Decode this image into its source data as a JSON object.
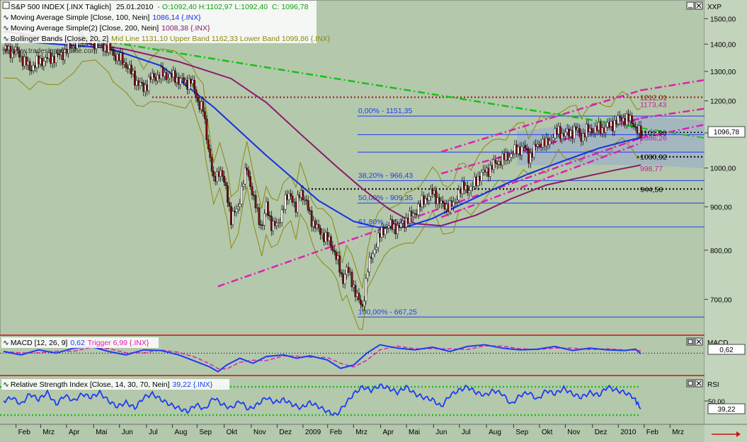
{
  "chart_data": {
    "type": "line",
    "main": {
      "legend": [
        {
          "label": "S&P 500 INDEX [.INX  Täglich]",
          "date": "25.01.2010",
          "ohlc": "- O:1092,40 H:1102,97 L:1092,40",
          "close": "C: 1096,78"
        },
        {
          "label": "Moving Average Simple [Close, 100, Nein]",
          "value": "1086,14 {.INX}"
        },
        {
          "label": "Moving Average Simple(2) [Close, 200, Nein]",
          "value": "1008,38 {.INX}"
        },
        {
          "label": "Bollinger Bands [Close, 20, 2]",
          "value": "Mid Line 1131,10 Upper Band 1162,33 Lower Band 1099,86 {.INX}"
        }
      ],
      "watermark": "© www.tradesignalonline.com",
      "axis_title": "XXP",
      "y_ticks": [
        700,
        800,
        900,
        1000,
        1100,
        1200,
        1300,
        1400,
        1500
      ],
      "y_tick_labels": [
        "700,00",
        "800,00",
        "900,00",
        "1000,00",
        "1100,00",
        "1200,00",
        "1300,00",
        "1400,00",
        "1500,00"
      ],
      "ylim": [
        640,
        1560
      ],
      "last_price": "1096,78",
      "fib_levels": [
        {
          "value": 1151.35,
          "label": "0,00% - 1151,35"
        },
        {
          "value": 966.43,
          "label": "38,20% - 966,43"
        },
        {
          "value": 909.35,
          "label": "50,00% - 909,35"
        },
        {
          "value": 852.26,
          "label": "61,80% - 852,26"
        },
        {
          "value": 667.25,
          "label": "100,00% - 667,25"
        }
      ],
      "level_annotations": [
        {
          "value": 1212.01,
          "label": "1212,01"
        },
        {
          "value": 1173.43,
          "label": "1173,43"
        },
        {
          "value": 1101.36,
          "label": "1101,36"
        },
        {
          "value": 1086.26,
          "label": "1086,26"
        },
        {
          "value": 1030.92,
          "label": "1030,92"
        },
        {
          "value": 998.77,
          "label": "998,77"
        },
        {
          "value": 944.56,
          "label": "944,56"
        }
      ],
      "close_series": [
        [
          0,
          1380
        ],
        [
          15,
          1372
        ],
        [
          30,
          1310
        ],
        [
          40,
          1335
        ],
        [
          50,
          1345
        ],
        [
          63,
          1355
        ],
        [
          80,
          1395
        ],
        [
          90,
          1420
        ],
        [
          105,
          1408
        ],
        [
          120,
          1385
        ],
        [
          125,
          1365
        ],
        [
          140,
          1325
        ],
        [
          152,
          1265
        ],
        [
          160,
          1240
        ],
        [
          168,
          1275
        ],
        [
          180,
          1290
        ],
        [
          195,
          1280
        ],
        [
          208,
          1260
        ],
        [
          214,
          1268
        ],
        [
          222,
          1200
        ],
        [
          228,
          1170
        ],
        [
          231,
          1105
        ],
        [
          236,
          1030
        ],
        [
          240,
          960
        ],
        [
          247,
          1000
        ],
        [
          256,
          925
        ],
        [
          260,
          870
        ],
        [
          268,
          900
        ],
        [
          273,
          955
        ],
        [
          278,
          1000
        ],
        [
          286,
          915
        ],
        [
          295,
          850
        ],
        [
          300,
          900
        ],
        [
          306,
          860
        ],
        [
          313,
          852
        ],
        [
          320,
          905
        ],
        [
          328,
          935
        ],
        [
          334,
          890
        ],
        [
          339,
          945
        ],
        [
          346,
          905
        ],
        [
          352,
          870
        ],
        [
          358,
          848
        ],
        [
          365,
          835
        ],
        [
          375,
          812
        ],
        [
          381,
          780
        ],
        [
          387,
          737
        ],
        [
          392,
          760
        ],
        [
          398,
          735
        ],
        [
          406,
          695
        ],
        [
          410,
          685
        ],
        [
          416,
          760
        ],
        [
          421,
          790
        ],
        [
          428,
          825
        ],
        [
          435,
          850
        ],
        [
          442,
          855
        ],
        [
          452,
          850
        ],
        [
          460,
          870
        ],
        [
          468,
          880
        ],
        [
          476,
          905
        ],
        [
          484,
          925
        ],
        [
          490,
          935
        ],
        [
          496,
          920
        ],
        [
          502,
          900
        ],
        [
          508,
          905
        ],
        [
          514,
          902
        ],
        [
          520,
          940
        ],
        [
          526,
          948
        ],
        [
          534,
          945
        ],
        [
          542,
          975
        ],
        [
          550,
          990
        ],
        [
          559,
          1005
        ],
        [
          566,
          1020
        ],
        [
          574,
          1028
        ],
        [
          580,
          1040
        ],
        [
          587,
          1050
        ],
        [
          594,
          1060
        ],
        [
          600,
          1030
        ],
        [
          607,
          1055
        ],
        [
          614,
          1075
        ],
        [
          620,
          1065
        ],
        [
          627,
          1090
        ],
        [
          634,
          1105
        ],
        [
          640,
          1095
        ],
        [
          647,
          1100
        ],
        [
          654,
          1110
        ],
        [
          660,
          1090
        ],
        [
          666,
          1105
        ],
        [
          673,
          1110
        ],
        [
          680,
          1112
        ],
        [
          688,
          1115
        ],
        [
          694,
          1125
        ],
        [
          700,
          1135
        ],
        [
          707,
          1145
        ],
        [
          714,
          1140
        ],
        [
          719,
          1135
        ],
        [
          724,
          1105
        ],
        [
          728,
          1096
        ]
      ],
      "sma100_series": [
        [
          0,
          1415
        ],
        [
          120,
          1385
        ],
        [
          180,
          1320
        ],
        [
          240,
          1180
        ],
        [
          300,
          1035
        ],
        [
          360,
          915
        ],
        [
          400,
          865
        ],
        [
          430,
          850
        ],
        [
          460,
          852
        ],
        [
          490,
          872
        ],
        [
          520,
          903
        ],
        [
          560,
          944
        ],
        [
          600,
          985
        ],
        [
          640,
          1020
        ],
        [
          680,
          1055
        ],
        [
          710,
          1075
        ],
        [
          728,
          1086
        ]
      ],
      "sma200_series": [
        [
          0,
          1450
        ],
        [
          140,
          1380
        ],
        [
          200,
          1335
        ],
        [
          260,
          1275
        ],
        [
          300,
          1195
        ],
        [
          340,
          1095
        ],
        [
          380,
          1005
        ],
        [
          410,
          945
        ],
        [
          440,
          895
        ],
        [
          470,
          860
        ],
        [
          500,
          855
        ],
        [
          540,
          880
        ],
        [
          580,
          920
        ],
        [
          620,
          955
        ],
        [
          660,
          975
        ],
        [
          700,
          995
        ],
        [
          728,
          1008
        ]
      ],
      "trendlines": [
        {
          "name": "long-term-down",
          "x1": 90,
          "y1": 1425,
          "x2": 728,
          "y2": 1115
        },
        {
          "name": "channel-upper",
          "x1": 500,
          "y1": 1045,
          "x2": 728,
          "y2": 1235
        },
        {
          "name": "channel-middle",
          "x1": 500,
          "y1": 985,
          "x2": 728,
          "y2": 1145
        },
        {
          "name": "support-lower",
          "x1": 245,
          "y1": 725,
          "x2": 728,
          "y2": 1085
        },
        {
          "name": "channel-lower",
          "x1": 500,
          "y1": 875,
          "x2": 728,
          "y2": 1070
        }
      ]
    },
    "macd": {
      "legend": "MACD [12, 26, 9]",
      "value": "0,62",
      "trigger": "Trigger 6,99 {.INX}",
      "axis_title": "MACD",
      "last_value": "0,62",
      "ylim": [
        -60,
        45
      ],
      "zero_level": 0,
      "series": [
        [
          0,
          5
        ],
        [
          20,
          -5
        ],
        [
          40,
          10
        ],
        [
          60,
          0
        ],
        [
          80,
          15
        ],
        [
          100,
          20
        ],
        [
          120,
          5
        ],
        [
          140,
          -5
        ],
        [
          160,
          10
        ],
        [
          180,
          8
        ],
        [
          200,
          -5
        ],
        [
          220,
          -25
        ],
        [
          235,
          -40
        ],
        [
          245,
          -55
        ],
        [
          255,
          -35
        ],
        [
          270,
          -15
        ],
        [
          285,
          -30
        ],
        [
          300,
          -10
        ],
        [
          320,
          -5
        ],
        [
          335,
          -15
        ],
        [
          350,
          -8
        ],
        [
          370,
          -20
        ],
        [
          385,
          -45
        ],
        [
          400,
          -35
        ],
        [
          415,
          0
        ],
        [
          430,
          25
        ],
        [
          450,
          15
        ],
        [
          470,
          10
        ],
        [
          490,
          18
        ],
        [
          510,
          5
        ],
        [
          530,
          20
        ],
        [
          550,
          25
        ],
        [
          570,
          15
        ],
        [
          590,
          10
        ],
        [
          610,
          12
        ],
        [
          630,
          20
        ],
        [
          650,
          8
        ],
        [
          670,
          15
        ],
        [
          690,
          10
        ],
        [
          710,
          8
        ],
        [
          722,
          12
        ],
        [
          728,
          -2
        ]
      ]
    },
    "rsi": {
      "legend": "Relative Strength Index [Close, 14, 30, 70, Nein]",
      "value": "39,22 {.INX}",
      "axis_title": "RSI",
      "tick_label": "50,00",
      "last_value": "39,22",
      "levels": [
        30,
        70
      ],
      "ylim": [
        20,
        80
      ],
      "series": [
        [
          0,
          50
        ],
        [
          10,
          55
        ],
        [
          20,
          45
        ],
        [
          30,
          60
        ],
        [
          40,
          52
        ],
        [
          50,
          62
        ],
        [
          60,
          45
        ],
        [
          70,
          58
        ],
        [
          80,
          50
        ],
        [
          90,
          60
        ],
        [
          100,
          55
        ],
        [
          110,
          62
        ],
        [
          120,
          50
        ],
        [
          130,
          42
        ],
        [
          140,
          48
        ],
        [
          150,
          40
        ],
        [
          160,
          55
        ],
        [
          170,
          60
        ],
        [
          180,
          52
        ],
        [
          190,
          45
        ],
        [
          200,
          40
        ],
        [
          210,
          35
        ],
        [
          220,
          45
        ],
        [
          230,
          38
        ],
        [
          240,
          55
        ],
        [
          250,
          45
        ],
        [
          260,
          40
        ],
        [
          270,
          50
        ],
        [
          280,
          38
        ],
        [
          290,
          45
        ],
        [
          300,
          55
        ],
        [
          310,
          48
        ],
        [
          320,
          52
        ],
        [
          330,
          45
        ],
        [
          340,
          40
        ],
        [
          350,
          48
        ],
        [
          360,
          42
        ],
        [
          370,
          35
        ],
        [
          380,
          30
        ],
        [
          390,
          45
        ],
        [
          400,
          60
        ],
        [
          410,
          70
        ],
        [
          420,
          65
        ],
        [
          430,
          72
        ],
        [
          440,
          68
        ],
        [
          450,
          62
        ],
        [
          460,
          70
        ],
        [
          470,
          60
        ],
        [
          480,
          55
        ],
        [
          490,
          52
        ],
        [
          500,
          42
        ],
        [
          510,
          58
        ],
        [
          520,
          65
        ],
        [
          530,
          70
        ],
        [
          540,
          62
        ],
        [
          550,
          58
        ],
        [
          560,
          65
        ],
        [
          570,
          60
        ],
        [
          580,
          45
        ],
        [
          590,
          58
        ],
        [
          600,
          62
        ],
        [
          610,
          52
        ],
        [
          620,
          65
        ],
        [
          630,
          60
        ],
        [
          640,
          68
        ],
        [
          650,
          60
        ],
        [
          660,
          55
        ],
        [
          670,
          62
        ],
        [
          680,
          58
        ],
        [
          690,
          70
        ],
        [
          700,
          65
        ],
        [
          710,
          62
        ],
        [
          720,
          55
        ],
        [
          728,
          39
        ]
      ]
    },
    "x_axis": {
      "labels": [
        "Feb",
        "Mrz",
        "Apr",
        "Mai",
        "Jun",
        "Jul",
        "Aug",
        "Sep",
        "Okt",
        "Nov",
        "Dez",
        "2009",
        "Feb",
        "Mrz",
        "Apr",
        "Mai",
        "Jun",
        "Jul",
        "Aug",
        "Sep",
        "Okt",
        "Nov",
        "Dez",
        "2010",
        "Feb",
        "Mrz"
      ],
      "positions": [
        0,
        20,
        41,
        63,
        84,
        106,
        127,
        147,
        169,
        191,
        212,
        233,
        253,
        274,
        296,
        317,
        339,
        360,
        382,
        404,
        425,
        446,
        468,
        489,
        510,
        531
      ],
      "range": [
        -13,
        559
      ]
    },
    "colors": {
      "background": "#b4c8ac",
      "price_up": "#ffffff",
      "price_down": "#7a0c10",
      "sma100": "#1430e0",
      "sma200": "#8a1a70",
      "bollinger": "#8a8a10",
      "fib": "#1e3cf0",
      "resistance": "#a01010",
      "trend_green": "#18c018",
      "trend_magenta": "#e020b0",
      "macd": "#1e3cf0",
      "macd_trigger": "#e020b0",
      "rsi": "#1e3cf0",
      "rsi_levels": "#18c018",
      "close_text": "#10a010"
    }
  }
}
